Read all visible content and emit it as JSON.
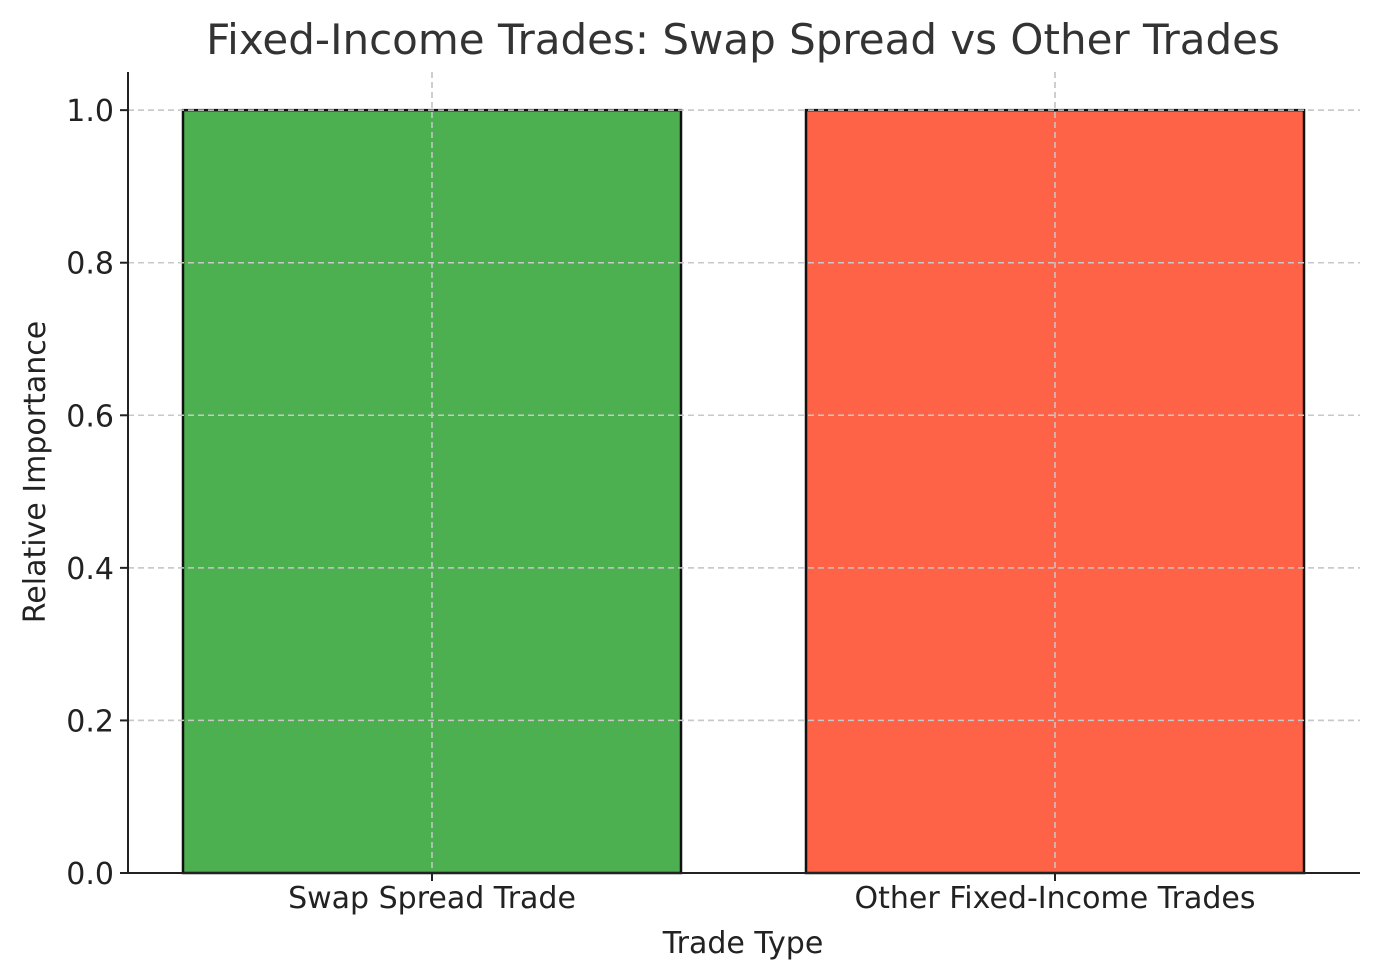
{
  "chart_data": {
    "type": "bar",
    "title": "Fixed-Income Trades: Swap Spread vs Other Trades",
    "xlabel": "Trade Type",
    "ylabel": "Relative Importance",
    "categories": [
      "Swap Spread Trade",
      "Other Fixed-Income Trades"
    ],
    "values": [
      1.0,
      1.0
    ],
    "colors": [
      "#4caf50",
      "#ff6347"
    ],
    "ylim": [
      0,
      1.05
    ],
    "yticks": [
      0.0,
      0.2,
      0.4,
      0.6,
      0.8,
      1.0
    ],
    "ytick_labels": [
      "0.0",
      "0.2",
      "0.4",
      "0.6",
      "0.8",
      "1.0"
    ],
    "grid": true
  }
}
